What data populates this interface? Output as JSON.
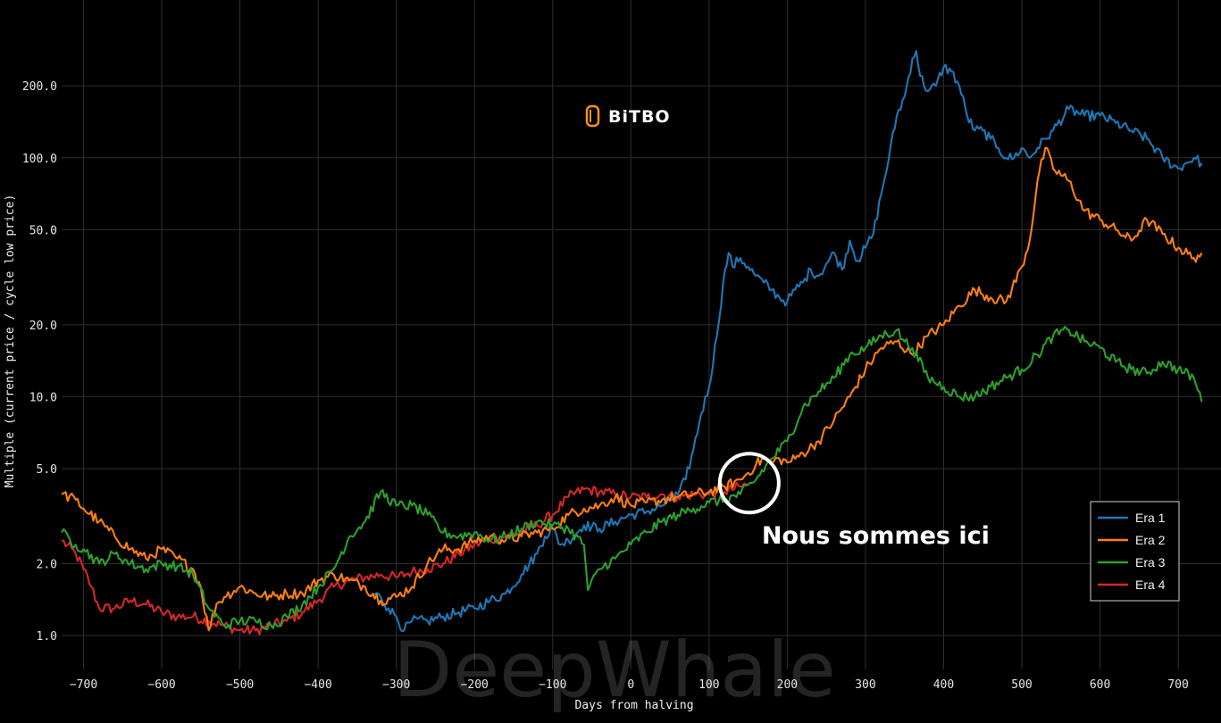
{
  "brand": {
    "name": "BiTBO",
    "logo_color": "#f7931a"
  },
  "watermark": "DeepWhale",
  "annotation": {
    "label": "Nous sommes ici",
    "x": 140,
    "y": 4.2
  },
  "chart_data": {
    "type": "line",
    "xlabel": "Days from halving",
    "ylabel": "Multiple (current price / cycle low price)",
    "y_scale": "log",
    "xlim": [
      -728,
      733
    ],
    "ylim": [
      1.0,
      330
    ],
    "x_ticks": [
      {
        "v": -700,
        "label": "−700"
      },
      {
        "v": -600,
        "label": "−600"
      },
      {
        "v": -500,
        "label": "−500"
      },
      {
        "v": -400,
        "label": "−400"
      },
      {
        "v": -300,
        "label": "−300"
      },
      {
        "v": -200,
        "label": "−200"
      },
      {
        "v": -100,
        "label": "−100"
      },
      {
        "v": 0,
        "label": "0"
      },
      {
        "v": 100,
        "label": "100"
      },
      {
        "v": 200,
        "label": "200"
      },
      {
        "v": 300,
        "label": "300"
      },
      {
        "v": 400,
        "label": "400"
      },
      {
        "v": 500,
        "label": "500"
      },
      {
        "v": 600,
        "label": "600"
      },
      {
        "v": 700,
        "label": "700"
      }
    ],
    "y_ticks": [
      {
        "v": 1,
        "label": "1.0"
      },
      {
        "v": 2,
        "label": "2.0"
      },
      {
        "v": 5,
        "label": "5.0"
      },
      {
        "v": 10,
        "label": "10.0"
      },
      {
        "v": 20,
        "label": "20.0"
      },
      {
        "v": 50,
        "label": "50.0"
      },
      {
        "v": 100,
        "label": "100.0"
      },
      {
        "v": 200,
        "label": "200.0"
      }
    ],
    "grid": true,
    "legend_position": "bottom-right",
    "series": [
      {
        "name": "Era 1",
        "color": "#1f77b4",
        "points": [
          [
            -330,
            1.5
          ],
          [
            -320,
            1.45
          ],
          [
            -310,
            1.3
          ],
          [
            -300,
            1.2
          ],
          [
            -290,
            1.05
          ],
          [
            -280,
            1.15
          ],
          [
            -260,
            1.15
          ],
          [
            -240,
            1.2
          ],
          [
            -220,
            1.25
          ],
          [
            -200,
            1.3
          ],
          [
            -180,
            1.4
          ],
          [
            -160,
            1.5
          ],
          [
            -140,
            1.8
          ],
          [
            -120,
            2.2
          ],
          [
            -110,
            2.6
          ],
          [
            -100,
            2.8
          ],
          [
            -90,
            2.4
          ],
          [
            -80,
            2.5
          ],
          [
            -60,
            2.9
          ],
          [
            -40,
            2.8
          ],
          [
            -20,
            3.0
          ],
          [
            0,
            3.2
          ],
          [
            20,
            3.3
          ],
          [
            40,
            3.5
          ],
          [
            60,
            3.9
          ],
          [
            70,
            4.5
          ],
          [
            80,
            6
          ],
          [
            90,
            8.5
          ],
          [
            100,
            11
          ],
          [
            110,
            18
          ],
          [
            118,
            30
          ],
          [
            125,
            40
          ],
          [
            130,
            35
          ],
          [
            140,
            38
          ],
          [
            150,
            35
          ],
          [
            160,
            32
          ],
          [
            170,
            30
          ],
          [
            180,
            28
          ],
          [
            190,
            26
          ],
          [
            200,
            25
          ],
          [
            210,
            28
          ],
          [
            220,
            30
          ],
          [
            230,
            34
          ],
          [
            240,
            32
          ],
          [
            250,
            36
          ],
          [
            260,
            40
          ],
          [
            270,
            34
          ],
          [
            280,
            45
          ],
          [
            290,
            37
          ],
          [
            300,
            42
          ],
          [
            310,
            48
          ],
          [
            320,
            70
          ],
          [
            330,
            100
          ],
          [
            340,
            150
          ],
          [
            350,
            180
          ],
          [
            360,
            260
          ],
          [
            365,
            280
          ],
          [
            370,
            220
          ],
          [
            380,
            190
          ],
          [
            390,
            200
          ],
          [
            400,
            240
          ],
          [
            410,
            230
          ],
          [
            420,
            200
          ],
          [
            430,
            150
          ],
          [
            440,
            130
          ],
          [
            450,
            130
          ],
          [
            460,
            120
          ],
          [
            470,
            110
          ],
          [
            480,
            100
          ],
          [
            490,
            100
          ],
          [
            500,
            110
          ],
          [
            510,
            100
          ],
          [
            520,
            110
          ],
          [
            530,
            120
          ],
          [
            540,
            130
          ],
          [
            560,
            160
          ],
          [
            580,
            150
          ],
          [
            600,
            150
          ],
          [
            620,
            140
          ],
          [
            640,
            130
          ],
          [
            660,
            120
          ],
          [
            680,
            100
          ],
          [
            700,
            90
          ],
          [
            710,
            95
          ],
          [
            720,
            100
          ],
          [
            730,
            95
          ]
        ]
      },
      {
        "name": "Era 2",
        "color": "#ff7f0e",
        "points": [
          [
            -728,
            3.9
          ],
          [
            -710,
            3.7
          ],
          [
            -700,
            3.4
          ],
          [
            -680,
            3.0
          ],
          [
            -660,
            2.6
          ],
          [
            -640,
            2.3
          ],
          [
            -620,
            2.1
          ],
          [
            -600,
            2.3
          ],
          [
            -580,
            2.1
          ],
          [
            -560,
            1.9
          ],
          [
            -550,
            1.6
          ],
          [
            -540,
            1.05
          ],
          [
            -530,
            1.35
          ],
          [
            -520,
            1.45
          ],
          [
            -500,
            1.6
          ],
          [
            -480,
            1.5
          ],
          [
            -460,
            1.45
          ],
          [
            -440,
            1.5
          ],
          [
            -420,
            1.5
          ],
          [
            -400,
            1.7
          ],
          [
            -380,
            1.8
          ],
          [
            -360,
            1.7
          ],
          [
            -340,
            1.6
          ],
          [
            -320,
            1.4
          ],
          [
            -300,
            1.45
          ],
          [
            -280,
            1.6
          ],
          [
            -260,
            2.0
          ],
          [
            -240,
            2.3
          ],
          [
            -220,
            2.3
          ],
          [
            -200,
            2.5
          ],
          [
            -180,
            2.6
          ],
          [
            -160,
            2.5
          ],
          [
            -140,
            2.6
          ],
          [
            -120,
            2.7
          ],
          [
            -100,
            2.8
          ],
          [
            -80,
            3.2
          ],
          [
            -60,
            3.4
          ],
          [
            -40,
            3.5
          ],
          [
            -20,
            3.8
          ],
          [
            0,
            3.5
          ],
          [
            20,
            3.6
          ],
          [
            40,
            3.7
          ],
          [
            60,
            3.8
          ],
          [
            80,
            3.9
          ],
          [
            100,
            4.0
          ],
          [
            120,
            4.2
          ],
          [
            140,
            4.5
          ],
          [
            150,
            4.8
          ],
          [
            160,
            5.2
          ],
          [
            170,
            5.5
          ],
          [
            180,
            5.3
          ],
          [
            190,
            5.5
          ],
          [
            200,
            5.3
          ],
          [
            210,
            5.5
          ],
          [
            220,
            5.8
          ],
          [
            240,
            6.5
          ],
          [
            260,
            8
          ],
          [
            280,
            10
          ],
          [
            300,
            13
          ],
          [
            320,
            16
          ],
          [
            340,
            17
          ],
          [
            360,
            15
          ],
          [
            380,
            18
          ],
          [
            400,
            20
          ],
          [
            420,
            24
          ],
          [
            440,
            28
          ],
          [
            460,
            26
          ],
          [
            480,
            25
          ],
          [
            500,
            35
          ],
          [
            510,
            45
          ],
          [
            520,
            80
          ],
          [
            530,
            110
          ],
          [
            540,
            90
          ],
          [
            560,
            80
          ],
          [
            580,
            60
          ],
          [
            600,
            55
          ],
          [
            620,
            50
          ],
          [
            640,
            45
          ],
          [
            660,
            55
          ],
          [
            680,
            48
          ],
          [
            700,
            42
          ],
          [
            720,
            38
          ],
          [
            730,
            40
          ]
        ]
      },
      {
        "name": "Era 3",
        "color": "#2ca02c",
        "points": [
          [
            -728,
            2.7
          ],
          [
            -710,
            2.4
          ],
          [
            -700,
            2.3
          ],
          [
            -680,
            2.0
          ],
          [
            -660,
            2.2
          ],
          [
            -640,
            2.0
          ],
          [
            -620,
            1.9
          ],
          [
            -600,
            2.0
          ],
          [
            -580,
            1.95
          ],
          [
            -560,
            1.8
          ],
          [
            -540,
            1.3
          ],
          [
            -520,
            1.1
          ],
          [
            -500,
            1.15
          ],
          [
            -480,
            1.15
          ],
          [
            -460,
            1.1
          ],
          [
            -440,
            1.2
          ],
          [
            -420,
            1.35
          ],
          [
            -400,
            1.6
          ],
          [
            -380,
            1.9
          ],
          [
            -360,
            2.6
          ],
          [
            -340,
            3.0
          ],
          [
            -320,
            4.0
          ],
          [
            -300,
            3.5
          ],
          [
            -280,
            3.5
          ],
          [
            -260,
            3.2
          ],
          [
            -240,
            2.7
          ],
          [
            -220,
            2.6
          ],
          [
            -200,
            2.7
          ],
          [
            -180,
            2.5
          ],
          [
            -160,
            2.6
          ],
          [
            -140,
            2.8
          ],
          [
            -120,
            3.0
          ],
          [
            -100,
            2.9
          ],
          [
            -80,
            2.8
          ],
          [
            -60,
            2.4
          ],
          [
            -55,
            1.55
          ],
          [
            -40,
            1.9
          ],
          [
            -20,
            2.1
          ],
          [
            0,
            2.4
          ],
          [
            20,
            2.7
          ],
          [
            40,
            3.0
          ],
          [
            60,
            3.2
          ],
          [
            80,
            3.4
          ],
          [
            100,
            3.6
          ],
          [
            120,
            3.7
          ],
          [
            140,
            3.9
          ],
          [
            160,
            4.5
          ],
          [
            180,
            5.5
          ],
          [
            200,
            6.5
          ],
          [
            220,
            9
          ],
          [
            240,
            10.5
          ],
          [
            260,
            12
          ],
          [
            280,
            15
          ],
          [
            300,
            16
          ],
          [
            320,
            18
          ],
          [
            340,
            19
          ],
          [
            350,
            17
          ],
          [
            360,
            16
          ],
          [
            380,
            12
          ],
          [
            400,
            11
          ],
          [
            420,
            10
          ],
          [
            440,
            10
          ],
          [
            460,
            11
          ],
          [
            480,
            12
          ],
          [
            500,
            13
          ],
          [
            520,
            15
          ],
          [
            540,
            18
          ],
          [
            560,
            19
          ],
          [
            580,
            17
          ],
          [
            600,
            16
          ],
          [
            620,
            14
          ],
          [
            640,
            13
          ],
          [
            660,
            12.5
          ],
          [
            680,
            14
          ],
          [
            700,
            13
          ],
          [
            720,
            12
          ],
          [
            730,
            9.5
          ]
        ]
      },
      {
        "name": "Era 4",
        "color": "#d62728",
        "points": [
          [
            -728,
            2.5
          ],
          [
            -710,
            2.2
          ],
          [
            -700,
            1.9
          ],
          [
            -690,
            1.6
          ],
          [
            -680,
            1.3
          ],
          [
            -660,
            1.3
          ],
          [
            -640,
            1.4
          ],
          [
            -620,
            1.35
          ],
          [
            -600,
            1.25
          ],
          [
            -580,
            1.2
          ],
          [
            -560,
            1.2
          ],
          [
            -540,
            1.15
          ],
          [
            -520,
            1.1
          ],
          [
            -500,
            1.05
          ],
          [
            -480,
            1.05
          ],
          [
            -460,
            1.1
          ],
          [
            -440,
            1.15
          ],
          [
            -420,
            1.25
          ],
          [
            -400,
            1.4
          ],
          [
            -380,
            1.6
          ],
          [
            -360,
            1.7
          ],
          [
            -340,
            1.75
          ],
          [
            -320,
            1.8
          ],
          [
            -300,
            1.75
          ],
          [
            -280,
            1.85
          ],
          [
            -260,
            1.9
          ],
          [
            -240,
            2.0
          ],
          [
            -220,
            2.2
          ],
          [
            -200,
            2.4
          ],
          [
            -180,
            2.5
          ],
          [
            -160,
            2.6
          ],
          [
            -140,
            2.7
          ],
          [
            -120,
            2.9
          ],
          [
            -100,
            3.2
          ],
          [
            -80,
            3.8
          ],
          [
            -60,
            4.1
          ],
          [
            -40,
            4.0
          ],
          [
            -20,
            3.9
          ],
          [
            0,
            3.8
          ],
          [
            20,
            3.8
          ],
          [
            40,
            3.9
          ],
          [
            60,
            3.8
          ],
          [
            80,
            3.9
          ],
          [
            100,
            3.9
          ],
          [
            120,
            4.0
          ],
          [
            140,
            4.2
          ],
          [
            150,
            4.3
          ]
        ]
      }
    ]
  }
}
